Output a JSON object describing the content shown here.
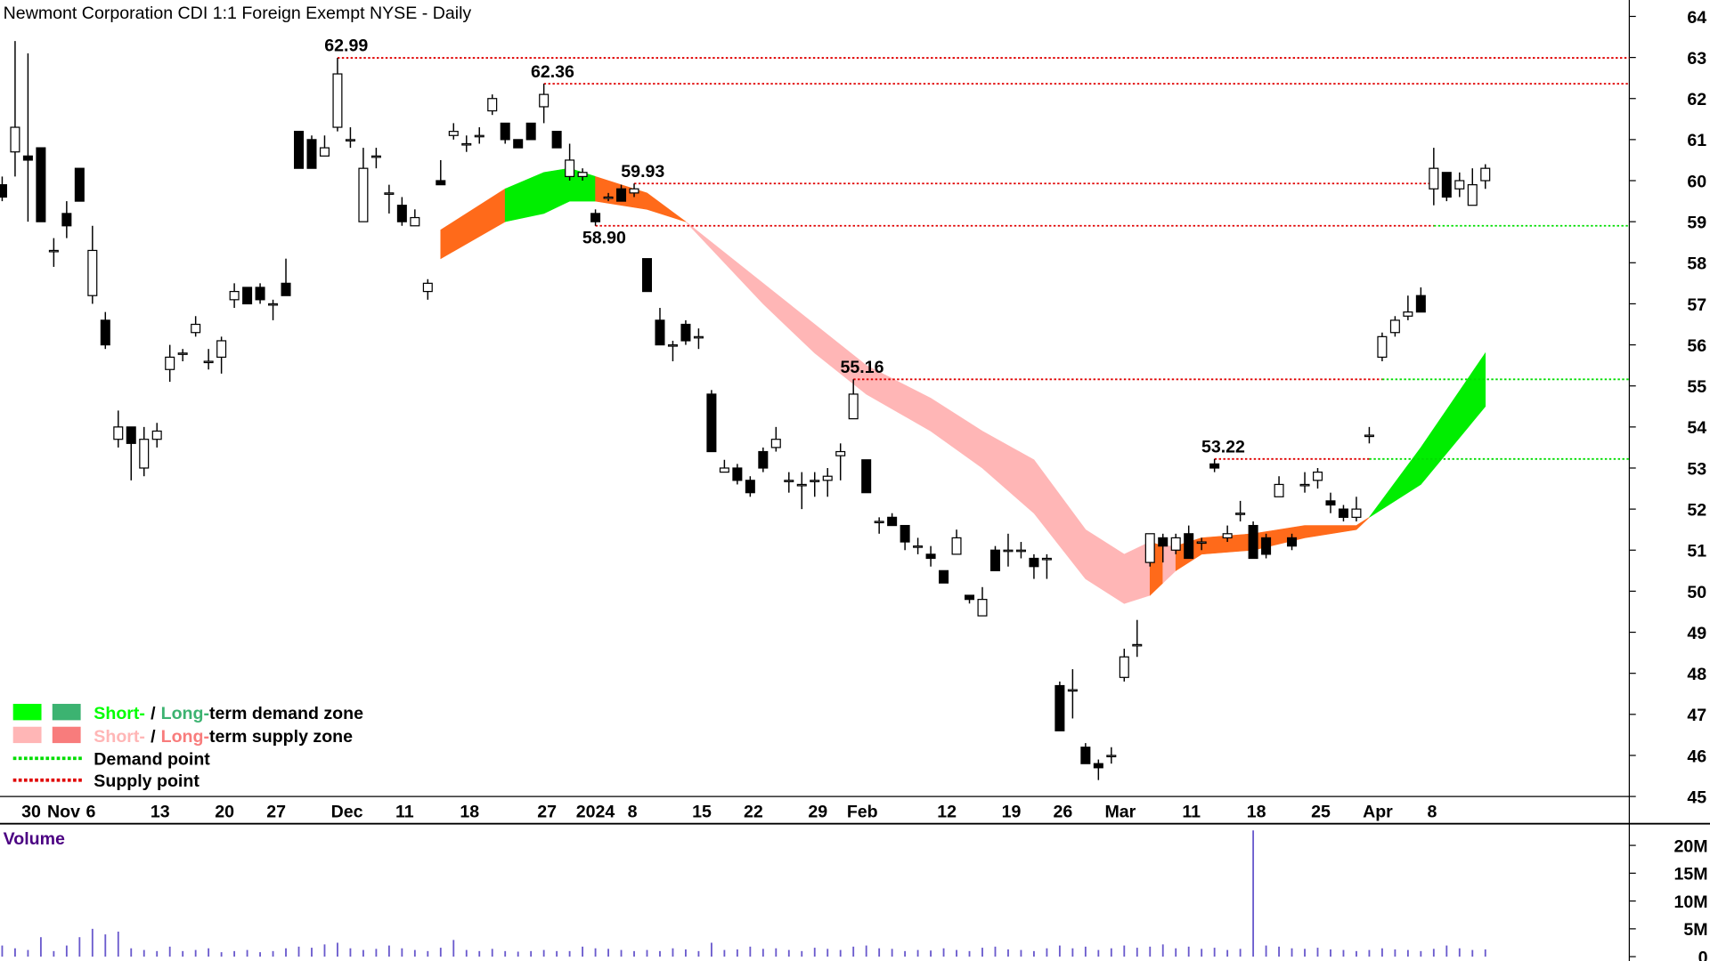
{
  "chart_data": {
    "type": "candlestick",
    "title": "Newmont Corporation CDI 1:1 Foreign Exempt NYSE - Daily",
    "categories": [
      null,
      null,
      "30",
      null,
      "Nov",
      null,
      null,
      "6",
      null,
      null,
      null,
      null,
      "13",
      null,
      null,
      null,
      null,
      "20",
      null,
      null,
      null,
      "27",
      null,
      null,
      null,
      null,
      "Dec",
      null,
      null,
      null,
      null,
      "11",
      null,
      null,
      null,
      null,
      "18",
      null,
      null,
      null,
      null,
      null,
      "27",
      null,
      null,
      "2024",
      null,
      null,
      null,
      "8",
      null,
      null,
      null,
      null,
      "15",
      null,
      null,
      null,
      "22",
      null,
      null,
      null,
      null,
      "29",
      null,
      null,
      "Feb",
      null,
      null,
      null,
      null,
      null,
      null,
      "12",
      null,
      null,
      null,
      null,
      "19",
      null,
      null,
      null,
      "26",
      null,
      null,
      null,
      "Mar",
      null,
      null,
      null,
      null,
      null,
      "11",
      null,
      null,
      null,
      null,
      "18",
      null,
      null,
      null,
      null,
      "25",
      null,
      null,
      null,
      "Apr",
      null,
      null,
      null,
      null,
      "8",
      null,
      null,
      null,
      null
    ],
    "open": [
      59.9,
      60.7,
      60.6,
      60.8,
      58.3,
      59.2,
      60.3,
      57.2,
      56.6,
      53.7,
      54.0,
      53.0,
      53.7,
      55.4,
      55.8,
      56.3,
      55.6,
      55.7,
      57.1,
      57.4,
      57.4,
      57.0,
      57.5,
      61.2,
      61.0,
      60.6,
      61.3,
      61.0,
      59.0,
      60.6,
      59.7,
      59.4,
      58.9,
      57.3,
      60.0,
      61.1,
      60.9,
      61.1,
      61.7,
      61.4,
      61.0,
      61.4,
      61.8,
      61.2,
      60.1,
      60.1,
      59.2,
      59.6,
      59.8,
      59.7,
      58.1,
      56.6,
      56.0,
      56.5,
      56.2,
      54.8,
      52.9,
      53.0,
      52.7,
      53.4,
      53.5,
      52.7,
      52.6,
      52.7,
      52.7,
      53.3,
      54.2,
      53.2,
      51.7,
      51.8,
      51.6,
      51.1,
      50.9,
      50.5,
      50.9,
      49.9,
      49.4,
      51.0,
      51.0,
      51.0,
      50.8,
      50.8,
      47.7,
      47.6,
      46.2,
      45.8,
      46.0,
      47.9,
      48.7,
      50.7,
      51.3,
      51.0,
      51.4,
      51.2,
      53.1,
      51.3,
      51.9,
      51.6,
      51.3,
      52.3,
      51.3,
      52.6,
      52.7,
      52.2,
      52.0,
      51.8,
      53.8,
      55.7,
      56.3,
      56.7,
      57.2,
      59.8,
      60.2,
      59.8,
      59.4,
      60.0
    ],
    "high": [
      60.1,
      63.4,
      63.1,
      60.8,
      58.6,
      59.5,
      60.3,
      58.9,
      56.8,
      54.4,
      54.0,
      54.0,
      54.1,
      56.0,
      55.9,
      56.7,
      55.9,
      56.2,
      57.5,
      57.4,
      57.5,
      57.1,
      58.1,
      61.2,
      61.1,
      61.1,
      62.99,
      61.3,
      60.8,
      60.8,
      59.9,
      59.6,
      59.3,
      57.6,
      60.5,
      61.4,
      61.1,
      61.3,
      62.1,
      61.4,
      61.0,
      61.4,
      62.36,
      61.2,
      60.9,
      60.3,
      59.3,
      59.7,
      59.9,
      59.93,
      58.1,
      56.9,
      56.1,
      56.6,
      56.4,
      54.9,
      53.2,
      53.1,
      52.8,
      53.5,
      54.0,
      52.9,
      52.9,
      52.9,
      53.0,
      53.6,
      55.16,
      53.2,
      51.8,
      51.9,
      51.6,
      51.3,
      51.1,
      50.5,
      51.5,
      49.9,
      50.1,
      51.1,
      51.4,
      51.2,
      50.9,
      50.9,
      47.8,
      48.1,
      46.3,
      45.9,
      46.2,
      48.6,
      49.3,
      51.4,
      51.4,
      51.4,
      51.6,
      51.3,
      53.22,
      51.6,
      52.2,
      51.7,
      51.4,
      52.8,
      51.4,
      52.9,
      53.0,
      52.4,
      52.1,
      52.3,
      54.0,
      56.3,
      56.7,
      57.2,
      57.4,
      60.8,
      60.2,
      60.2,
      60.3,
      60.4
    ],
    "low": [
      59.5,
      60.1,
      59.0,
      59.0,
      57.9,
      58.6,
      59.5,
      57.0,
      55.9,
      53.5,
      52.7,
      52.8,
      53.5,
      55.1,
      55.6,
      56.2,
      55.4,
      55.3,
      56.9,
      57.0,
      57.0,
      56.6,
      57.2,
      60.3,
      60.3,
      60.6,
      61.2,
      60.8,
      59.0,
      60.3,
      59.2,
      58.9,
      58.9,
      57.1,
      59.9,
      61.0,
      60.7,
      60.9,
      61.6,
      60.9,
      60.8,
      61.0,
      61.4,
      60.8,
      60.0,
      60.0,
      58.9,
      59.5,
      59.5,
      59.6,
      57.3,
      56.0,
      55.6,
      56.0,
      55.9,
      53.4,
      52.9,
      52.6,
      52.3,
      52.9,
      53.4,
      52.4,
      52.0,
      52.3,
      52.3,
      52.7,
      54.2,
      52.4,
      51.4,
      51.6,
      51.0,
      50.9,
      50.6,
      50.2,
      50.9,
      49.7,
      49.4,
      50.5,
      50.6,
      50.8,
      50.3,
      50.3,
      46.6,
      46.9,
      45.8,
      45.4,
      45.8,
      47.8,
      48.4,
      50.6,
      50.7,
      50.9,
      50.8,
      51.0,
      52.9,
      51.2,
      51.7,
      50.8,
      50.8,
      52.3,
      51.0,
      52.4,
      52.5,
      51.9,
      51.7,
      51.7,
      53.6,
      55.6,
      56.2,
      56.6,
      56.8,
      59.4,
      59.5,
      59.6,
      59.4,
      59.8
    ],
    "close": [
      59.6,
      61.3,
      60.5,
      59.0,
      58.3,
      58.9,
      59.5,
      58.3,
      56.0,
      54.0,
      53.6,
      53.7,
      53.9,
      55.7,
      55.8,
      56.5,
      55.6,
      56.1,
      57.3,
      57.0,
      57.1,
      57.0,
      57.2,
      60.3,
      60.3,
      60.8,
      62.6,
      61.0,
      60.3,
      60.6,
      59.7,
      59.0,
      59.1,
      57.5,
      59.9,
      61.2,
      60.9,
      61.1,
      62.0,
      61.0,
      60.8,
      61.0,
      62.1,
      60.8,
      60.5,
      60.2,
      59.0,
      59.6,
      59.5,
      59.8,
      57.3,
      56.0,
      56.0,
      56.1,
      56.2,
      53.4,
      53.0,
      52.7,
      52.4,
      53.0,
      53.7,
      52.7,
      52.6,
      52.7,
      52.8,
      53.4,
      54.8,
      52.4,
      51.7,
      51.6,
      51.2,
      51.1,
      50.8,
      50.2,
      51.3,
      49.8,
      49.8,
      50.5,
      51.0,
      51.0,
      50.6,
      50.8,
      46.6,
      47.6,
      45.8,
      45.7,
      46.0,
      48.4,
      48.7,
      51.4,
      51.1,
      51.3,
      50.8,
      51.2,
      53.0,
      51.4,
      51.9,
      50.8,
      50.9,
      52.6,
      51.1,
      52.6,
      52.9,
      52.1,
      51.8,
      52.0,
      53.8,
      56.2,
      56.6,
      56.8,
      56.8,
      60.3,
      59.6,
      60.0,
      59.9,
      60.3
    ],
    "ylim": [
      45,
      64.4
    ],
    "yticks": [
      45,
      46,
      47,
      48,
      49,
      50,
      51,
      52,
      53,
      54,
      55,
      56,
      57,
      58,
      59,
      60,
      61,
      62,
      63,
      64
    ],
    "levels": [
      {
        "label": "62.99",
        "value": 62.99,
        "at": 26,
        "pivot": "high"
      },
      {
        "label": "62.36",
        "value": 62.36,
        "at": 42,
        "pivot": "high"
      },
      {
        "label": "59.93",
        "value": 59.93,
        "at": 49,
        "pivot": "high",
        "until": 111
      },
      {
        "label": "58.90",
        "value": 58.9,
        "at": 46,
        "pivot": "low",
        "until": 111,
        "then": "demand"
      },
      {
        "label": "55.16",
        "value": 55.16,
        "at": 66,
        "pivot": "high",
        "until": 107,
        "then": "demand"
      },
      {
        "label": "53.22",
        "value": 53.22,
        "at": 94,
        "pivot": "high",
        "until": 106,
        "then": "demand"
      }
    ],
    "supply_color": "#e00000",
    "demand_color": "#00dd00",
    "zone": {
      "x": [
        34,
        39,
        42,
        44,
        46,
        50,
        53,
        59,
        63,
        67,
        72,
        76,
        80,
        84,
        87,
        89,
        90,
        91,
        93,
        97,
        101,
        105,
        106,
        110,
        115
      ],
      "upper": [
        58.8,
        59.8,
        60.2,
        60.3,
        60.1,
        59.7,
        59.0,
        57.5,
        56.5,
        55.5,
        54.7,
        53.9,
        53.2,
        51.5,
        50.9,
        51.2,
        51.1,
        51.1,
        51.3,
        51.4,
        51.6,
        51.6,
        51.8,
        53.5,
        55.8
      ],
      "lower": [
        58.1,
        59.0,
        59.2,
        59.5,
        59.5,
        59.3,
        59.0,
        57.0,
        55.8,
        54.8,
        53.9,
        53.0,
        51.9,
        50.3,
        49.7,
        49.9,
        50.2,
        50.5,
        50.9,
        51.0,
        51.3,
        51.5,
        51.8,
        52.6,
        54.5
      ],
      "segments": [
        {
          "from": 34,
          "to": 39,
          "color": "#ff6a1a"
        },
        {
          "from": 39,
          "to": 46,
          "color": "#00ee00"
        },
        {
          "from": 46,
          "to": 53,
          "color": "#ff6a1a"
        },
        {
          "from": 53,
          "to": 89,
          "color": "#ffb6b6"
        },
        {
          "from": 89,
          "to": 90,
          "color": "#ff6a1a"
        },
        {
          "from": 90,
          "to": 91,
          "color": "#ffb6b6"
        },
        {
          "from": 91,
          "to": 106,
          "color": "#ff6a1a"
        },
        {
          "from": 106,
          "to": 115,
          "color": "#00ee00"
        }
      ]
    },
    "legend": [
      {
        "colors": [
          "#00ff00",
          "#3cb371"
        ],
        "parts": [
          "Short-",
          "/",
          "Long-",
          "term demand zone"
        ]
      },
      {
        "colors": [
          "#ffb6b6",
          "#f87c7c"
        ],
        "parts": [
          "Short-",
          "/",
          "Long-",
          "term supply zone"
        ]
      },
      {
        "line": "#00dd00",
        "text": "Demand point"
      },
      {
        "line": "#e00000",
        "text": "Supply point"
      }
    ],
    "volume": {
      "label": "Volume",
      "color": "#6a5acd",
      "values": [
        2.0,
        1.5,
        1.2,
        3.5,
        1.0,
        2.0,
        3.5,
        5.0,
        4.0,
        4.5,
        1.5,
        1.2,
        1.0,
        1.8,
        1.0,
        1.2,
        1.5,
        0.8,
        1.0,
        1.2,
        0.8,
        1.0,
        1.5,
        1.8,
        1.6,
        2.2,
        2.5,
        1.5,
        1.2,
        1.4,
        2.0,
        1.5,
        1.2,
        1.0,
        1.6,
        3.0,
        1.2,
        1.0,
        1.4,
        1.0,
        0.9,
        1.0,
        1.2,
        1.0,
        1.0,
        1.8,
        1.5,
        1.4,
        1.2,
        1.0,
        1.2,
        1.0,
        1.5,
        1.3,
        1.0,
        2.5,
        1.2,
        1.3,
        1.8,
        1.4,
        1.5,
        1.2,
        1.0,
        1.6,
        1.4,
        1.2,
        1.8,
        2.0,
        1.5,
        1.4,
        1.0,
        1.2,
        1.1,
        1.5,
        1.2,
        1.0,
        1.6,
        1.8,
        1.3,
        1.2,
        1.0,
        1.5,
        2.0,
        1.5,
        1.8,
        1.2,
        1.5,
        2.0,
        1.6,
        1.8,
        2.2,
        1.5,
        1.8,
        1.4,
        1.6,
        1.2,
        1.4,
        22.7,
        2.0,
        1.8,
        1.5,
        1.4,
        1.6,
        1.3,
        1.2,
        1.0,
        1.2,
        1.5,
        1.3,
        1.2,
        1.0,
        1.4,
        2.0,
        1.5,
        1.2,
        1.3
      ],
      "ylim": [
        0,
        23.7
      ],
      "yticks": [
        0,
        {
          "value": 5,
          "label": "5M"
        },
        {
          "value": 10,
          "label": "10M"
        },
        {
          "value": 15,
          "label": "15M"
        },
        {
          "value": 20,
          "label": "20M"
        }
      ]
    }
  }
}
